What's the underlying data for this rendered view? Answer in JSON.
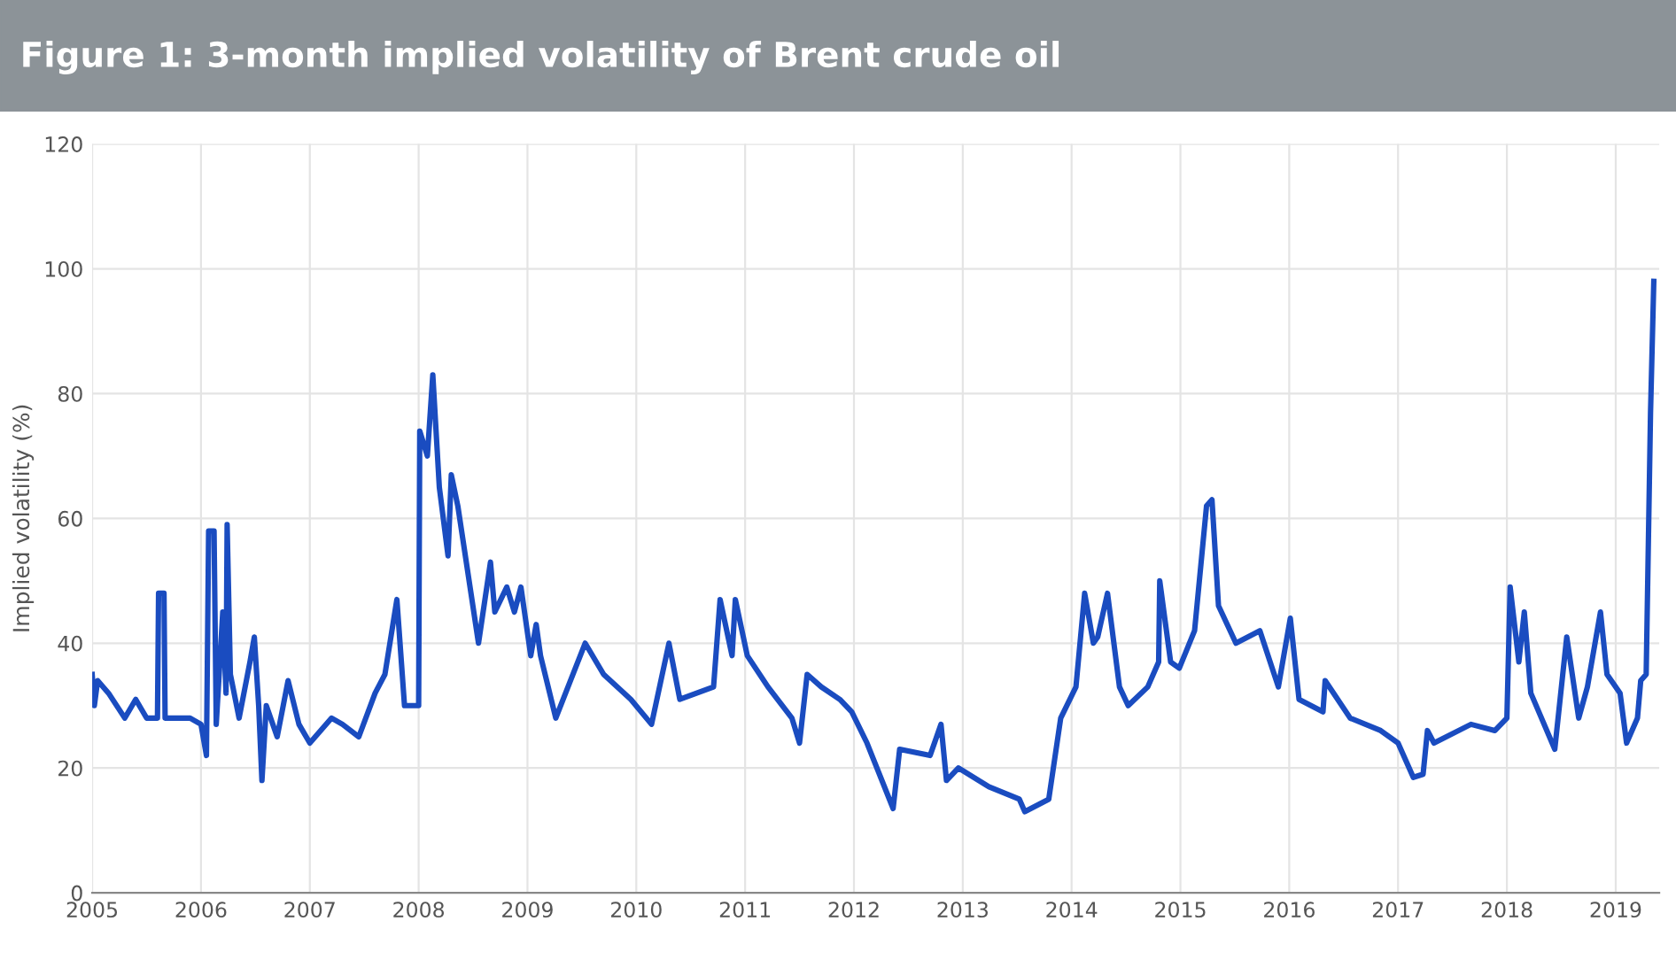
{
  "chart_data": {
    "type": "line",
    "title": "Figure 1: 3-month implied volatility of Brent crude oil",
    "ylabel": "Implied volatility (%)",
    "xlim": [
      2005,
      2019.4
    ],
    "xticks": [
      2005,
      2006,
      2007,
      2008,
      2009,
      2010,
      2011,
      2012,
      2013,
      2014,
      2015,
      2016,
      2017,
      2018,
      2019
    ],
    "ylim": [
      0,
      120
    ],
    "yticks": [
      0,
      20,
      40,
      60,
      80,
      100,
      120
    ],
    "grid": true,
    "marker": "none",
    "line_style": "solid",
    "series": [
      {
        "color": "#1a4cc0",
        "x": [
          2005.0,
          2005.02,
          2005.05,
          2005.15,
          2005.3,
          2005.4,
          2005.5,
          2005.6,
          2005.61,
          2005.66,
          2005.67,
          2005.9,
          2006.0,
          2006.05,
          2006.07,
          2006.12,
          2006.14,
          2006.2,
          2006.23,
          2006.24,
          2006.27,
          2006.35,
          2006.45,
          2006.49,
          2006.53,
          2006.56,
          2006.6,
          2006.7,
          2006.8,
          2006.9,
          2007.0,
          2007.2,
          2007.3,
          2007.45,
          2007.6,
          2007.69,
          2007.8,
          2007.87,
          2008.0,
          2008.01,
          2008.08,
          2008.13,
          2008.19,
          2008.27,
          2008.3,
          2008.36,
          2008.55,
          2008.66,
          2008.7,
          2008.81,
          2008.88,
          2008.94,
          2009.03,
          2009.08,
          2009.12,
          2009.26,
          2009.53,
          2009.7,
          2009.95,
          2010.14,
          2010.3,
          2010.4,
          2010.71,
          2010.77,
          2010.88,
          2010.91,
          2011.02,
          2011.21,
          2011.43,
          2011.5,
          2011.57,
          2011.7,
          2011.87,
          2011.98,
          2012.12,
          2012.36,
          2012.42,
          2012.7,
          2012.8,
          2012.85,
          2012.96,
          2013.24,
          2013.52,
          2013.57,
          2013.79,
          2013.9,
          2014.04,
          2014.12,
          2014.2,
          2014.24,
          2014.33,
          2014.44,
          2014.52,
          2014.7,
          2014.8,
          2014.81,
          2014.91,
          2014.99,
          2015.13,
          2015.24,
          2015.29,
          2015.35,
          2015.51,
          2015.73,
          2015.9,
          2016.01,
          2016.09,
          2016.31,
          2016.33,
          2016.56,
          2016.84,
          2017.0,
          2017.14,
          2017.23,
          2017.27,
          2017.33,
          2017.67,
          2017.89,
          2018.0,
          2018.03,
          2018.11,
          2018.16,
          2018.22,
          2018.44,
          2018.55,
          2018.66,
          2018.74,
          2018.86,
          2018.92,
          2019.04,
          2019.1,
          2019.2,
          2019.23,
          2019.28,
          2019.32,
          2019.35
        ],
        "values": [
          35,
          30,
          34,
          32,
          28,
          31,
          28,
          28,
          48,
          48,
          28,
          28,
          27,
          22,
          58,
          58,
          27,
          45,
          32,
          59,
          35,
          28,
          37,
          41,
          30,
          18,
          30,
          25,
          34,
          27,
          24,
          28,
          27,
          25,
          32,
          35,
          47,
          30,
          30,
          74,
          70,
          83,
          65,
          54,
          67,
          62,
          40,
          53,
          45,
          49,
          45,
          49,
          38,
          43,
          38,
          28,
          40,
          35,
          31,
          27,
          40,
          31,
          33,
          47,
          38,
          47,
          38,
          33,
          28,
          24,
          35,
          33,
          31,
          29,
          24,
          13.5,
          23,
          22,
          27,
          18,
          20,
          17,
          15,
          13,
          15,
          28,
          33,
          48,
          40,
          41,
          48,
          33,
          30,
          33,
          37,
          50,
          37,
          36,
          42,
          62,
          63,
          46,
          40,
          42,
          33,
          44,
          31,
          29,
          34,
          28,
          26,
          24,
          18.5,
          19,
          26,
          24,
          27,
          26,
          28,
          49,
          37,
          45,
          32,
          23,
          41,
          28,
          33,
          45,
          35,
          32,
          24,
          28,
          34,
          35,
          77,
          98
        ]
      }
    ]
  }
}
